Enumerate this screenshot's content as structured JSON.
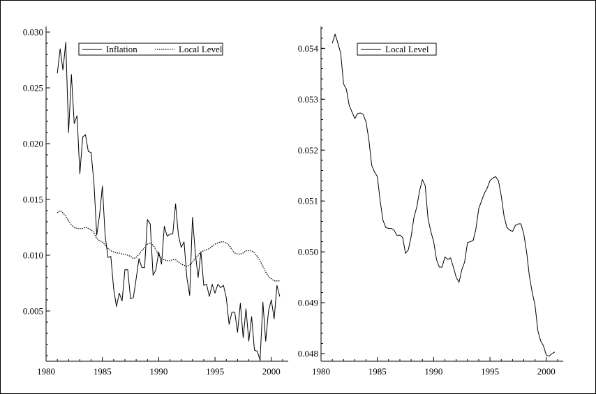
{
  "chart_data": [
    {
      "type": "line",
      "title": "",
      "xlabel": "",
      "ylabel": "",
      "xlim": [
        1980,
        2001.5
      ],
      "ylim": [
        0.0005,
        0.0305
      ],
      "xticks": [
        1980,
        1985,
        1990,
        1995,
        2000
      ],
      "yticks": [
        0.005,
        0.01,
        0.015,
        0.02,
        0.025,
        0.03
      ],
      "xtick_labels": [
        "1980",
        "1985",
        "1990",
        "1995",
        "2000"
      ],
      "ytick_labels": [
        "0.005",
        "0.010",
        "0.015",
        "0.020",
        "0.025",
        "0.030"
      ],
      "legend_position": "top",
      "series": [
        {
          "name": "Inflation",
          "style": "solid",
          "x": [
            1981.0,
            1981.25,
            1981.5,
            1981.75,
            1982.0,
            1982.25,
            1982.5,
            1982.75,
            1983.0,
            1983.25,
            1983.5,
            1983.75,
            1984.0,
            1984.25,
            1984.5,
            1984.75,
            1985.0,
            1985.25,
            1985.5,
            1985.75,
            1986.0,
            1986.25,
            1986.5,
            1986.75,
            1987.0,
            1987.25,
            1987.5,
            1987.75,
            1988.0,
            1988.25,
            1988.5,
            1988.75,
            1989.0,
            1989.25,
            1989.5,
            1989.75,
            1990.0,
            1990.25,
            1990.5,
            1990.75,
            1991.0,
            1991.25,
            1991.5,
            1991.75,
            1992.0,
            1992.25,
            1992.5,
            1992.75,
            1993.0,
            1993.25,
            1993.5,
            1993.75,
            1994.0,
            1994.25,
            1994.5,
            1994.75,
            1995.0,
            1995.25,
            1995.5,
            1995.75,
            1996.0,
            1996.25,
            1996.5,
            1996.75,
            1997.0,
            1997.25,
            1997.5,
            1997.75,
            1998.0,
            1998.25,
            1998.5,
            1998.75,
            1999.0,
            1999.25,
            1999.5,
            1999.75,
            2000.0,
            2000.25,
            2000.5,
            2000.75
          ],
          "values": [
            0.0263,
            0.0285,
            0.0266,
            0.0291,
            0.021,
            0.0262,
            0.0218,
            0.0225,
            0.0173,
            0.0206,
            0.0208,
            0.0193,
            0.0192,
            0.0165,
            0.0118,
            0.0136,
            0.0162,
            0.0117,
            0.0098,
            0.0099,
            0.007,
            0.0054,
            0.0066,
            0.0059,
            0.0087,
            0.0087,
            0.0061,
            0.0062,
            0.0079,
            0.0097,
            0.0089,
            0.0089,
            0.0132,
            0.0128,
            0.0082,
            0.0087,
            0.0103,
            0.0092,
            0.0126,
            0.0117,
            0.0119,
            0.0119,
            0.0146,
            0.0118,
            0.0107,
            0.0112,
            0.008,
            0.0064,
            0.0134,
            0.0102,
            0.008,
            0.0103,
            0.0073,
            0.0074,
            0.0063,
            0.0074,
            0.0066,
            0.0074,
            0.0071,
            0.0073,
            0.0062,
            0.0038,
            0.0049,
            0.0049,
            0.0031,
            0.0057,
            0.0026,
            0.0052,
            0.0023,
            0.0045,
            0.0015,
            0.0014,
            0.0006,
            0.0058,
            0.0023,
            0.005,
            0.006,
            0.0043,
            0.0073,
            0.0063
          ]
        },
        {
          "name": "Local Level",
          "style": "dotted",
          "x": [
            1981.0,
            1981.25,
            1981.5,
            1981.75,
            1982.0,
            1982.25,
            1982.5,
            1982.75,
            1983.0,
            1983.25,
            1983.5,
            1983.75,
            1984.0,
            1984.25,
            1984.5,
            1984.75,
            1985.0,
            1985.25,
            1985.5,
            1985.75,
            1986.0,
            1986.25,
            1986.5,
            1986.75,
            1987.0,
            1987.25,
            1987.5,
            1987.75,
            1988.0,
            1988.25,
            1988.5,
            1988.75,
            1989.0,
            1989.25,
            1989.5,
            1989.75,
            1990.0,
            1990.25,
            1990.5,
            1990.75,
            1991.0,
            1991.25,
            1991.5,
            1991.75,
            1992.0,
            1992.25,
            1992.5,
            1992.75,
            1993.0,
            1993.25,
            1993.5,
            1993.75,
            1994.0,
            1994.25,
            1994.5,
            1994.75,
            1995.0,
            1995.25,
            1995.5,
            1995.75,
            1996.0,
            1996.25,
            1996.5,
            1996.75,
            1997.0,
            1997.25,
            1997.5,
            1997.75,
            1998.0,
            1998.25,
            1998.5,
            1998.75,
            1999.0,
            1999.25,
            1999.5,
            1999.75,
            2000.0,
            2000.25,
            2000.5,
            2000.75
          ],
          "values": [
            0.0138,
            0.014,
            0.0138,
            0.0135,
            0.0131,
            0.0127,
            0.0125,
            0.0124,
            0.0124,
            0.0124,
            0.0125,
            0.0124,
            0.0123,
            0.012,
            0.0115,
            0.0113,
            0.0112,
            0.0109,
            0.0106,
            0.0104,
            0.0103,
            0.0102,
            0.0102,
            0.0101,
            0.0101,
            0.01,
            0.0099,
            0.0097,
            0.0098,
            0.0101,
            0.0104,
            0.0107,
            0.011,
            0.0111,
            0.0109,
            0.0105,
            0.01,
            0.0097,
            0.0096,
            0.0095,
            0.0095,
            0.0096,
            0.0096,
            0.0094,
            0.0092,
            0.0091,
            0.009,
            0.0091,
            0.0094,
            0.0097,
            0.01,
            0.0103,
            0.0104,
            0.0105,
            0.0106,
            0.0108,
            0.011,
            0.0111,
            0.0112,
            0.0112,
            0.0111,
            0.0109,
            0.0105,
            0.0102,
            0.0101,
            0.0101,
            0.0102,
            0.0104,
            0.0104,
            0.0104,
            0.0102,
            0.0099,
            0.0095,
            0.009,
            0.0085,
            0.0081,
            0.0079,
            0.0077,
            0.0077,
            0.0077
          ]
        }
      ]
    },
    {
      "type": "line",
      "title": "",
      "xlabel": "",
      "ylabel": "",
      "xlim": [
        1980,
        2001.5
      ],
      "ylim": [
        0.04785,
        0.05443
      ],
      "xticks": [
        1980,
        1985,
        1990,
        1995,
        2000
      ],
      "yticks": [
        0.048,
        0.049,
        0.05,
        0.051,
        0.052,
        0.053,
        0.054
      ],
      "xtick_labels": [
        "1980",
        "1985",
        "1990",
        "1995",
        "2000"
      ],
      "ytick_labels": [
        "0.048",
        "0.049",
        "0.050",
        "0.051",
        "0.052",
        "0.053",
        "0.054"
      ],
      "legend_position": "top-left",
      "series": [
        {
          "name": "Local Level",
          "style": "solid",
          "x": [
            1981.0,
            1981.25,
            1981.5,
            1981.75,
            1982.0,
            1982.25,
            1982.5,
            1982.75,
            1983.0,
            1983.25,
            1983.5,
            1983.75,
            1984.0,
            1984.25,
            1984.5,
            1984.75,
            1985.0,
            1985.25,
            1985.5,
            1985.75,
            1986.0,
            1986.25,
            1986.5,
            1986.75,
            1987.0,
            1987.25,
            1987.5,
            1987.75,
            1988.0,
            1988.25,
            1988.5,
            1988.75,
            1989.0,
            1989.25,
            1989.5,
            1989.75,
            1990.0,
            1990.25,
            1990.5,
            1990.75,
            1991.0,
            1991.25,
            1991.5,
            1991.75,
            1992.0,
            1992.25,
            1992.5,
            1992.75,
            1993.0,
            1993.25,
            1993.5,
            1993.75,
            1994.0,
            1994.25,
            1994.5,
            1994.75,
            1995.0,
            1995.25,
            1995.5,
            1995.75,
            1996.0,
            1996.25,
            1996.5,
            1996.75,
            1997.0,
            1997.25,
            1997.5,
            1997.75,
            1998.0,
            1998.25,
            1998.5,
            1998.75,
            1999.0,
            1999.25,
            1999.5,
            1999.75,
            2000.0,
            2000.25,
            2000.5,
            2000.75
          ],
          "values": [
            0.0541,
            0.05428,
            0.0541,
            0.0539,
            0.0533,
            0.0532,
            0.05288,
            0.05275,
            0.05262,
            0.05272,
            0.05273,
            0.0527,
            0.05255,
            0.0522,
            0.0517,
            0.05157,
            0.05148,
            0.051,
            0.05062,
            0.05048,
            0.05046,
            0.05046,
            0.05042,
            0.05032,
            0.05033,
            0.05028,
            0.04997,
            0.05004,
            0.0503,
            0.05068,
            0.05088,
            0.0512,
            0.05142,
            0.0513,
            0.05065,
            0.0504,
            0.0502,
            0.04985,
            0.0497,
            0.0497,
            0.0499,
            0.04985,
            0.04988,
            0.0497,
            0.0495,
            0.0494,
            0.04965,
            0.0498,
            0.05018,
            0.0502,
            0.05022,
            0.05045,
            0.05085,
            0.051,
            0.05115,
            0.05125,
            0.0514,
            0.05145,
            0.05148,
            0.0514,
            0.0511,
            0.0507,
            0.05048,
            0.05043,
            0.0504,
            0.05052,
            0.05055,
            0.05055,
            0.05035,
            0.05,
            0.04952,
            0.0492,
            0.04895,
            0.04845,
            0.04825,
            0.04815,
            0.04797,
            0.04795,
            0.048,
            0.04803
          ]
        }
      ]
    }
  ]
}
